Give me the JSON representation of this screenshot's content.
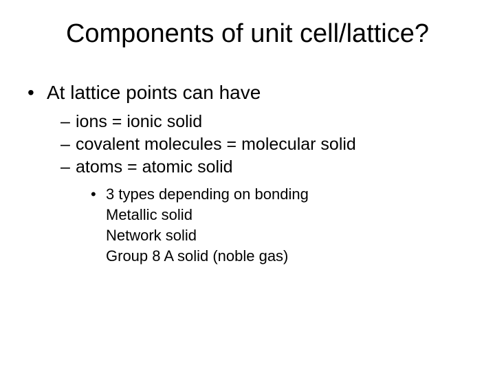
{
  "title": "Components of unit cell/lattice?",
  "level1_text": "At lattice points can have",
  "level2": {
    "item1": "ions = ionic solid",
    "item2": "covalent molecules = molecular solid",
    "item3": "atoms = atomic solid"
  },
  "level3_text": "3 types depending on bonding",
  "level4": {
    "item1": "Metallic solid",
    "item2": "Network solid",
    "item3": "Group 8 A solid (noble gas)"
  },
  "style": {
    "background_color": "#ffffff",
    "text_color": "#000000",
    "font_family": "Arial",
    "title_fontsize": 38,
    "level1_fontsize": 28,
    "level2_fontsize": 25,
    "level3_fontsize": 22,
    "level4_fontsize": 22,
    "bullet_char": "•",
    "dash_char": "–"
  }
}
